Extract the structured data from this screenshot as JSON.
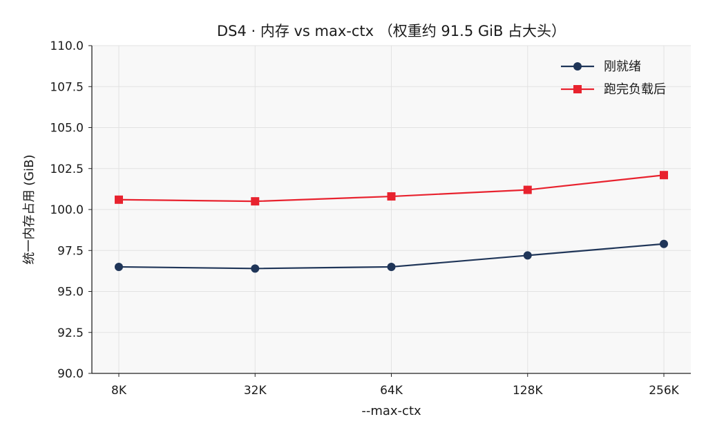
{
  "chart_data": {
    "type": "line",
    "title": "DS4 · 内存 vs max-ctx （权重约 91.5 GiB 占大头）",
    "xlabel": "--max-ctx",
    "ylabel": "统一内存占用 (GiB)",
    "categories": [
      "8K",
      "32K",
      "64K",
      "128K",
      "256K"
    ],
    "ylim": [
      90.0,
      110.0
    ],
    "yticks": [
      "90.0",
      "92.5",
      "95.0",
      "97.5",
      "100.0",
      "102.5",
      "105.0",
      "107.5",
      "110.0"
    ],
    "grid": true,
    "legend_position": "top-right",
    "series": [
      {
        "name": "刚就绪",
        "marker": "circle",
        "color": "#1f3558",
        "values": [
          96.5,
          96.4,
          96.5,
          97.2,
          97.9
        ]
      },
      {
        "name": "跑完负载后",
        "marker": "square",
        "color": "#e8222e",
        "values": [
          100.6,
          100.5,
          100.8,
          101.2,
          102.1
        ]
      }
    ]
  }
}
